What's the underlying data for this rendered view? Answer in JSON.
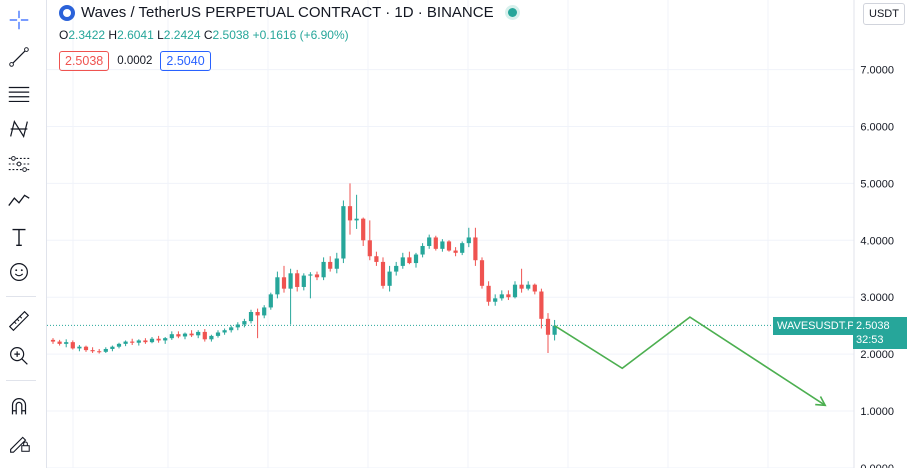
{
  "legend": {
    "title": "Waves / TetherUS PERPETUAL CONTRACT · 1D · BINANCE",
    "open_label": "O",
    "open": "2.3422",
    "high_label": "H",
    "high": "2.6041",
    "low_label": "L",
    "low": "2.2424",
    "close_label": "C",
    "close": "2.5038",
    "change": "+0.1616 (+6.90%)"
  },
  "quote": {
    "bid": "2.5038",
    "spread": "0.0002",
    "ask": "2.5040"
  },
  "currency": "USDT",
  "symbol_tag": "WAVESUSDT.P",
  "last_price": "2.5038",
  "countdown": "32:53",
  "toolbar": {
    "tools": [
      "crosshair-icon",
      "trend-line-icon",
      "fib-lines-icon",
      "pattern-icon",
      "prediction-icon",
      "brush-icon",
      "text-icon",
      "emoji-icon",
      "ruler-icon",
      "zoom-in-icon",
      "magnet-icon",
      "lock-draw-icon"
    ]
  },
  "colors": {
    "up": "#26a69a",
    "down": "#ef5350",
    "drawing": "#4caf50"
  },
  "chart_data": {
    "type": "candlestick",
    "y_axis": {
      "ticks": [
        "7.0000",
        "6.0000",
        "5.0000",
        "4.0000",
        "3.0000",
        "2.0000",
        "1.0000",
        "0.0000"
      ],
      "range": [
        0,
        7.5
      ]
    },
    "grid": true,
    "last_price_line": 2.5038,
    "candles": [
      [
        2.25,
        2.28,
        2.18,
        2.22
      ],
      [
        2.22,
        2.25,
        2.15,
        2.18
      ],
      [
        2.18,
        2.26,
        2.12,
        2.21
      ],
      [
        2.21,
        2.24,
        2.08,
        2.1
      ],
      [
        2.1,
        2.16,
        2.05,
        2.13
      ],
      [
        2.13,
        2.15,
        2.04,
        2.07
      ],
      [
        2.07,
        2.12,
        2.02,
        2.05
      ],
      [
        2.05,
        2.09,
        2.01,
        2.04
      ],
      [
        2.04,
        2.12,
        2.02,
        2.09
      ],
      [
        2.09,
        2.15,
        2.05,
        2.13
      ],
      [
        2.13,
        2.2,
        2.1,
        2.18
      ],
      [
        2.18,
        2.24,
        2.14,
        2.22
      ],
      [
        2.22,
        2.27,
        2.16,
        2.2
      ],
      [
        2.2,
        2.26,
        2.15,
        2.24
      ],
      [
        2.24,
        2.28,
        2.18,
        2.21
      ],
      [
        2.21,
        2.3,
        2.19,
        2.27
      ],
      [
        2.27,
        2.32,
        2.2,
        2.24
      ],
      [
        2.24,
        2.3,
        2.18,
        2.28
      ],
      [
        2.28,
        2.4,
        2.25,
        2.35
      ],
      [
        2.35,
        2.4,
        2.28,
        2.31
      ],
      [
        2.31,
        2.38,
        2.26,
        2.36
      ],
      [
        2.36,
        2.42,
        2.3,
        2.33
      ],
      [
        2.33,
        2.42,
        2.28,
        2.39
      ],
      [
        2.39,
        2.44,
        2.22,
        2.26
      ],
      [
        2.26,
        2.34,
        2.22,
        2.32
      ],
      [
        2.32,
        2.42,
        2.29,
        2.38
      ],
      [
        2.38,
        2.45,
        2.34,
        2.42
      ],
      [
        2.42,
        2.5,
        2.38,
        2.47
      ],
      [
        2.47,
        2.56,
        2.42,
        2.52
      ],
      [
        2.52,
        2.62,
        2.47,
        2.58
      ],
      [
        2.58,
        2.78,
        2.54,
        2.74
      ],
      [
        2.74,
        2.8,
        2.28,
        2.68
      ],
      [
        2.68,
        2.86,
        2.63,
        2.82
      ],
      [
        2.82,
        3.08,
        2.78,
        3.05
      ],
      [
        3.05,
        3.45,
        2.98,
        3.35
      ],
      [
        3.35,
        3.55,
        3.08,
        3.15
      ],
      [
        3.15,
        3.5,
        2.52,
        3.42
      ],
      [
        3.42,
        3.48,
        3.1,
        3.18
      ],
      [
        3.18,
        3.42,
        3.12,
        3.38
      ],
      [
        3.38,
        3.44,
        2.98,
        3.4
      ],
      [
        3.4,
        3.45,
        3.3,
        3.35
      ],
      [
        3.35,
        3.7,
        3.3,
        3.62
      ],
      [
        3.62,
        3.72,
        3.45,
        3.5
      ],
      [
        3.5,
        3.78,
        3.42,
        3.68
      ],
      [
        3.68,
        4.7,
        3.6,
        4.6
      ],
      [
        4.6,
        5.0,
        4.1,
        4.35
      ],
      [
        4.35,
        4.8,
        4.2,
        4.38
      ],
      [
        4.38,
        4.4,
        3.9,
        4.0
      ],
      [
        4.0,
        4.35,
        3.65,
        3.72
      ],
      [
        3.72,
        3.8,
        3.55,
        3.62
      ],
      [
        3.62,
        3.7,
        3.15,
        3.2
      ],
      [
        3.2,
        3.55,
        3.1,
        3.45
      ],
      [
        3.45,
        3.62,
        3.38,
        3.55
      ],
      [
        3.55,
        3.78,
        3.5,
        3.7
      ],
      [
        3.7,
        3.8,
        3.58,
        3.6
      ],
      [
        3.6,
        3.78,
        3.52,
        3.75
      ],
      [
        3.75,
        3.95,
        3.7,
        3.9
      ],
      [
        3.9,
        4.1,
        3.85,
        4.05
      ],
      [
        4.05,
        4.08,
        3.82,
        3.85
      ],
      [
        3.85,
        4.02,
        3.8,
        3.98
      ],
      [
        3.98,
        4.0,
        3.8,
        3.82
      ],
      [
        3.82,
        3.88,
        3.72,
        3.78
      ],
      [
        3.78,
        3.98,
        3.74,
        3.95
      ],
      [
        3.95,
        4.22,
        3.88,
        4.05
      ],
      [
        4.05,
        4.22,
        3.55,
        3.65
      ],
      [
        3.65,
        3.7,
        3.15,
        3.2
      ],
      [
        3.2,
        3.28,
        2.85,
        2.92
      ],
      [
        2.92,
        3.05,
        2.85,
        2.98
      ],
      [
        2.98,
        3.12,
        2.94,
        3.05
      ],
      [
        3.05,
        3.12,
        2.95,
        3.0
      ],
      [
        3.0,
        3.28,
        2.98,
        3.22
      ],
      [
        3.22,
        3.5,
        3.08,
        3.15
      ],
      [
        3.15,
        3.28,
        3.12,
        3.22
      ],
      [
        3.22,
        3.24,
        3.05,
        3.1
      ],
      [
        3.1,
        3.15,
        2.45,
        2.62
      ],
      [
        2.62,
        2.72,
        2.02,
        2.34
      ],
      [
        2.34,
        2.6,
        2.24,
        2.5
      ]
    ],
    "annotation": {
      "type": "path",
      "color": "#4caf50",
      "points": [
        [
          2.5,
          0
        ],
        [
          1.75,
          5
        ],
        [
          2.65,
          10
        ],
        [
          1.1,
          20
        ]
      ]
    }
  }
}
